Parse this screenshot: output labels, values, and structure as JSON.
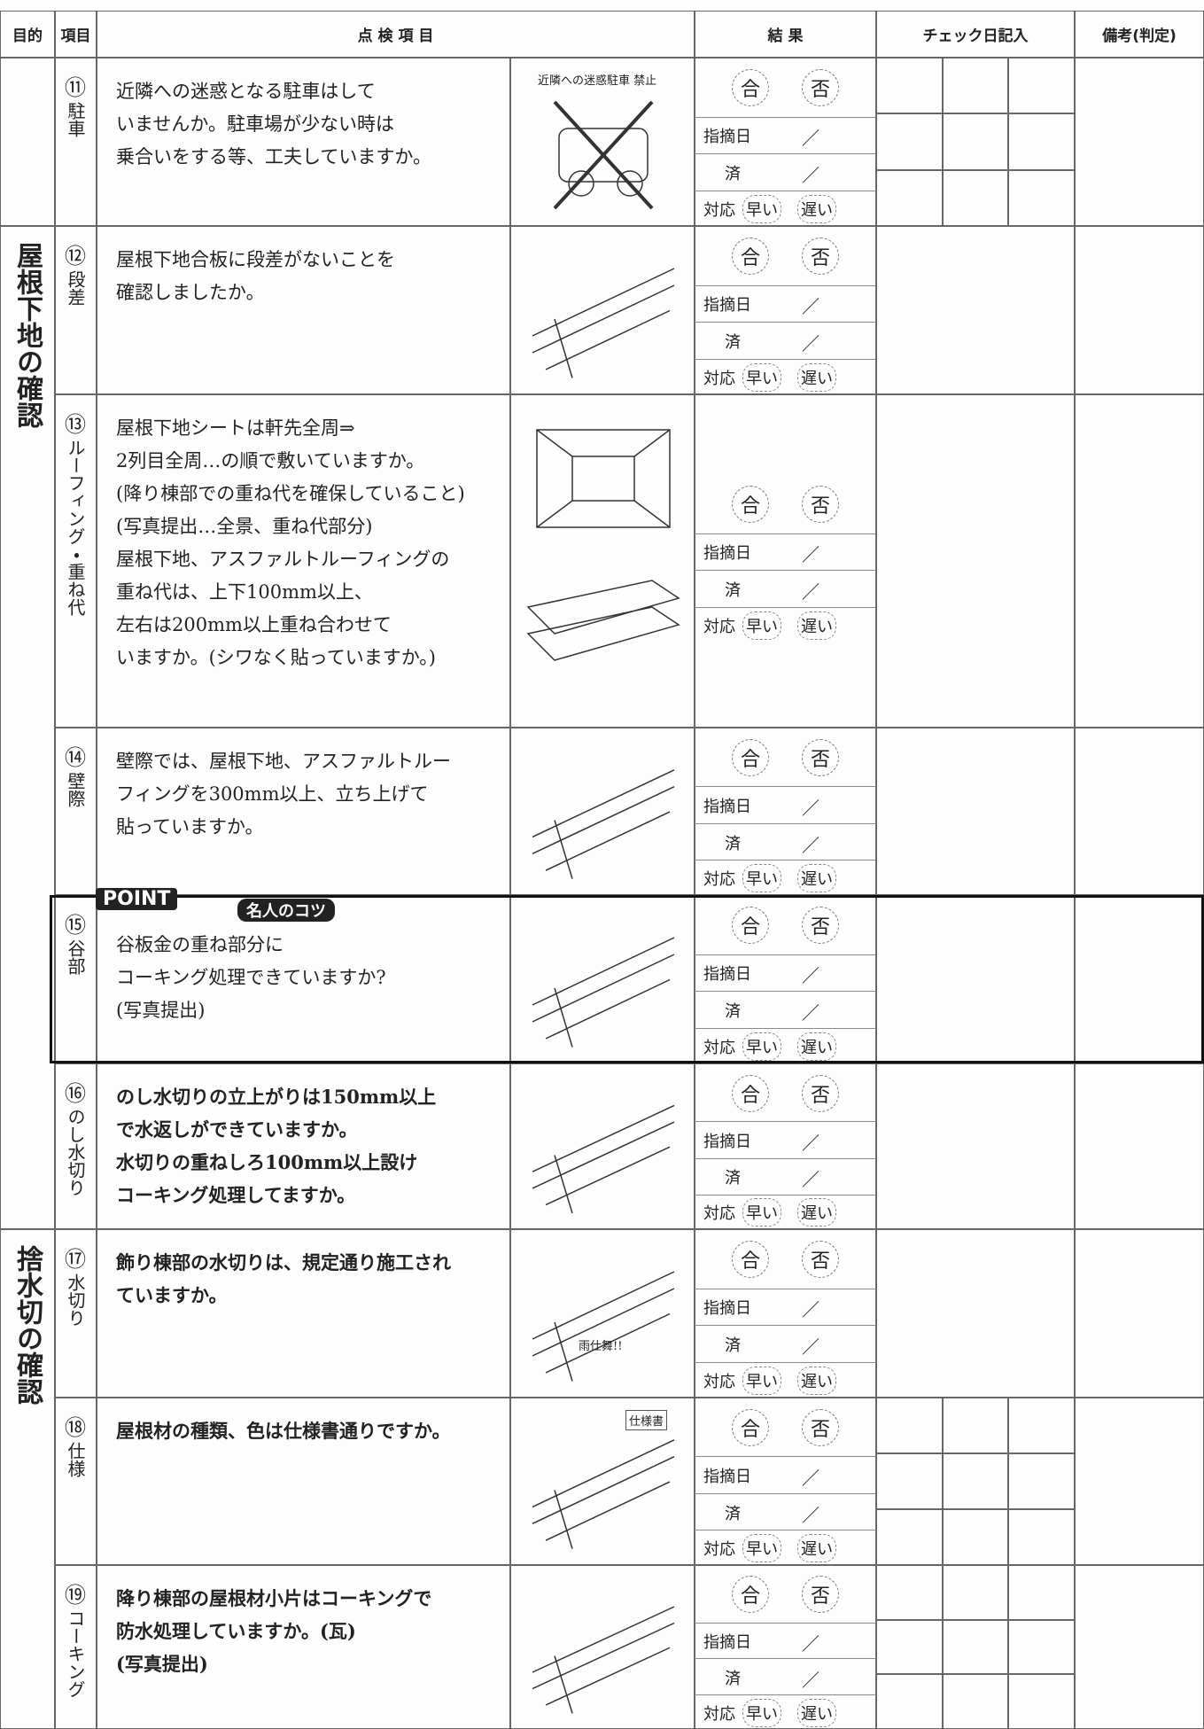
{
  "header": {
    "purpose": "目的",
    "item": "項目",
    "inspection": "点 検 項 目",
    "result": "結 果",
    "check_date": "チェック日記入",
    "remarks": "備考(判定)"
  },
  "result_labels": {
    "pass": "合",
    "fail": "否",
    "pointed": "指摘日",
    "slash": "／",
    "done": "済",
    "response": "対応",
    "early": "早い",
    "late": "遅い"
  },
  "groups": [
    {
      "label": "屋根下地の確認"
    },
    {
      "label": "捨水切の確認"
    }
  ],
  "point": {
    "badge": "POINT",
    "tip": "名人のコツ"
  },
  "rows": [
    {
      "number": "⑪",
      "item": "駐車",
      "lines": [
        "近隣への迷惑となる駐車はして",
        "いませんか。駐車場が少ない時は",
        "乗合いをする等、工夫していますか。"
      ],
      "sketch_label": "近隣への迷惑駐車 禁止"
    },
    {
      "number": "⑫",
      "item": "段差",
      "lines": [
        "屋根下地合板に段差がないことを",
        "確認しましたか。"
      ]
    },
    {
      "number": "⑬",
      "item": "ルーフィング・重ね代",
      "lines": [
        "屋根下地シートは軒先全周⇒",
        "2列目全周…の順で敷いていますか。",
        "(降り棟部での重ね代を確保していること)",
        "(写真提出…全景、重ね代部分)",
        "屋根下地、アスファルトルーフィングの",
        "重ね代は、上下100mm以上、",
        "左右は200mm以上重ね合わせて",
        "いますか。(シワなく貼っていますか。)"
      ]
    },
    {
      "number": "⑭",
      "item": "壁際",
      "lines": [
        "壁際では、屋根下地、アスファルトルー",
        "フィングを300mm以上、立ち上げて",
        "貼っていますか。"
      ]
    },
    {
      "number": "⑮",
      "item": "谷部",
      "lines": [
        "谷板金の重ね部分に",
        "コーキング処理できていますか?",
        "(写真提出)"
      ]
    },
    {
      "number": "⑯",
      "item": "のし水切り",
      "lines": [
        "のし水切りの立上がりは150mm以上",
        "で水返しができていますか。",
        "水切りの重ねしろ100mm以上設け",
        "コーキング処理してますか。"
      ]
    },
    {
      "number": "⑰",
      "item": "水切り",
      "lines": [
        "飾り棟部の水切りは、規定通り施工され",
        "ていますか。"
      ],
      "sketch_label": "雨仕舞!!"
    },
    {
      "number": "⑱",
      "item": "仕様",
      "lines": [
        "屋根材の種類、色は仕様書通りですか。"
      ],
      "sketch_label": "仕様書"
    },
    {
      "number": "⑲",
      "item": "コーキング",
      "lines": [
        "降り棟部の屋根材小片はコーキングで",
        "防水処理していますか。(瓦)",
        "(写真提出)"
      ]
    }
  ]
}
